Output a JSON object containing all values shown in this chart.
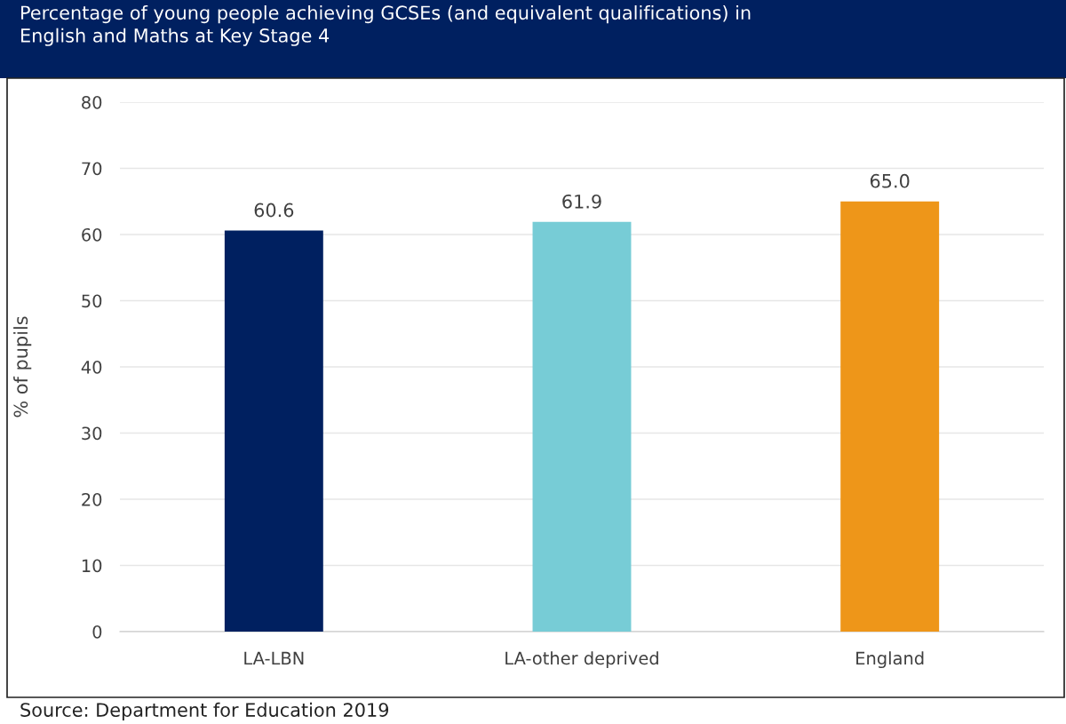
{
  "chart_data": {
    "type": "bar",
    "title": "Percentage of young people achieving GCSEs (and equivalent qualifications) in\nEnglish and Maths at Key Stage 4",
    "ylabel": "% of pupils",
    "categories": [
      "LA-LBN",
      "LA-other deprived",
      "England"
    ],
    "values": [
      60.6,
      61.9,
      65.0
    ],
    "colors": [
      "#002060",
      "#77ccd6",
      "#ee9619"
    ],
    "value_labels": [
      "60.6",
      "61.9",
      "65.0"
    ],
    "ylim": [
      0,
      80
    ],
    "yticks": [
      0,
      10,
      20,
      30,
      40,
      50,
      60,
      70,
      80
    ],
    "grid": "y",
    "annotations": [
      "Source: Department for Education 2019"
    ]
  }
}
